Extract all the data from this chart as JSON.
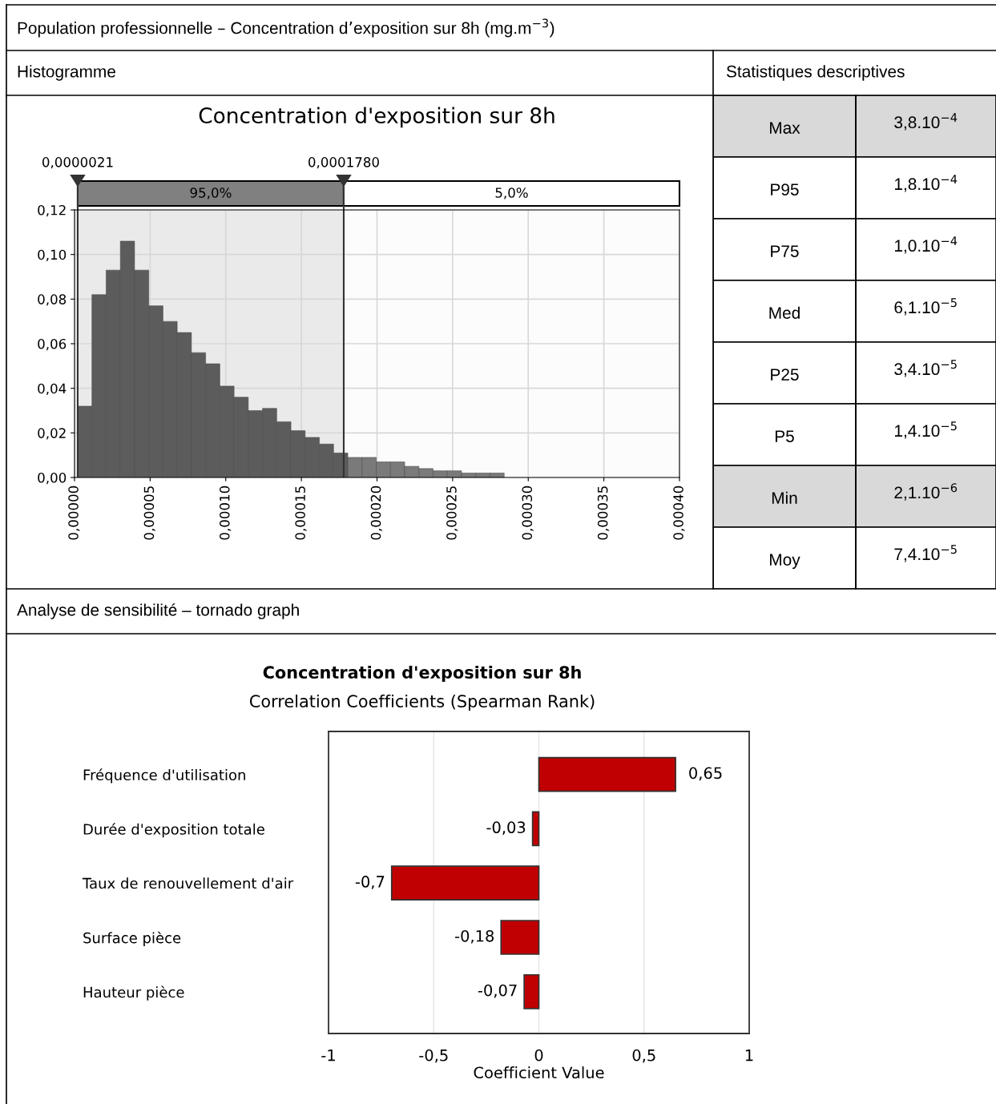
{
  "chart_data": [
    {
      "type": "histogram",
      "title": "Concentration d'exposition sur 8h",
      "annotations": [
        "Population professionnelle – Concentration d’exposition sur 8h (mg.m$^{−3}$)",
        "Histogramme"
      ],
      "bins": [
        2.1e-06,
        1.15e-05,
        2.09e-05,
        3.03e-05,
        3.97e-05,
        4.91e-05,
        5.85e-05,
        6.79e-05,
        7.73e-05,
        8.67e-05,
        9.61e-05,
        0.0001055,
        0.0001149,
        0.0001243,
        0.0001337,
        0.0001431,
        0.0001525,
        0.0001619,
        0.0001713,
        0.0001807,
        0.0001901,
        0.0001995,
        0.0002089,
        0.0002183,
        0.0002277,
        0.0002371,
        0.0002465,
        0.0002559,
        0.0002653,
        0.0002747,
        0.0002841
      ],
      "values": [
        0.032,
        0.082,
        0.093,
        0.106,
        0.093,
        0.077,
        0.07,
        0.065,
        0.056,
        0.051,
        0.041,
        0.036,
        0.03,
        0.031,
        0.025,
        0.021,
        0.018,
        0.015,
        0.011,
        0.009,
        0.009,
        0.007,
        0.007,
        0.005,
        0.004,
        0.003,
        0.003,
        0.002,
        0.002,
        0.002
      ],
      "colors": [
        "#5c5c5c",
        "#5c5c5c",
        "#5c5c5c",
        "#5c5c5c",
        "#5c5c5c",
        "#5c5c5c",
        "#5c5c5c",
        "#5c5c5c",
        "#5c5c5c",
        "#5c5c5c",
        "#5c5c5c",
        "#5c5c5c",
        "#5c5c5c",
        "#5c5c5c",
        "#5c5c5c",
        "#5c5c5c",
        "#5c5c5c",
        "#5c5c5c",
        "#5c5c5c",
        "#7a7a7a",
        "#7a7a7a",
        "#7a7a7a",
        "#7a7a7a",
        "#7a7a7a",
        "#7a7a7a",
        "#7a7a7a",
        "#7a7a7a",
        "#7a7a7a",
        "#7a7a7a",
        "#7a7a7a"
      ],
      "xlim": [
        0,
        0.0004
      ],
      "xticks": [
        {
          "value": 0,
          "label": "0,00000"
        },
        {
          "value": 5e-05,
          "label": "0,00005"
        },
        {
          "value": 0.0001,
          "label": "0,00010"
        },
        {
          "value": 0.00015,
          "label": "0,00015"
        },
        {
          "value": 0.0002,
          "label": "0,00020"
        },
        {
          "value": 0.00025,
          "label": "0,00025"
        },
        {
          "value": 0.0003,
          "label": "0,00030"
        },
        {
          "value": 0.00035,
          "label": "0,00035"
        },
        {
          "value": 0.0004,
          "label": "0,00040"
        }
      ],
      "ylim": [
        0,
        0.12
      ],
      "yticks": [
        {
          "value": 0,
          "label": "0,00"
        },
        {
          "value": 0.02,
          "label": "0,02"
        },
        {
          "value": 0.04,
          "label": "0,04"
        },
        {
          "value": 0.06,
          "label": "0,06"
        },
        {
          "value": 0.08,
          "label": "0,08"
        },
        {
          "value": 0.1,
          "label": "0,10"
        },
        {
          "value": 0.12,
          "label": "0,12"
        }
      ],
      "grid": true,
      "ref_lines": [
        {
          "axis": "x",
          "value": 2.1e-06,
          "label": "0,0000021",
          "color": "#333333"
        },
        {
          "axis": "x",
          "value": 0.000178,
          "label": "0,0001780",
          "color": "#333333"
        }
      ],
      "bands": [
        {
          "axis": "x",
          "from": 2.1e-06,
          "to": 0.000178,
          "label": "95,0%",
          "color": "#808080"
        },
        {
          "axis": "x",
          "from": 0.000178,
          "to": 0.0004,
          "label": "5,0%",
          "color": "#ffffff"
        }
      ]
    },
    {
      "type": "other",
      "title": "Statistiques descriptives",
      "categories": [
        "Max",
        "P95",
        "P75",
        "Med",
        "P25",
        "P5",
        "Min",
        "Moy"
      ],
      "value_labels": [
        "3,8.10$^{−4}$",
        "1,8.10$^{−4}$",
        "1,0.10$^{−4}$",
        "6,1.10$^{−5}$",
        "3,4.10$^{−5}$",
        "1,4.10$^{−5}$",
        "2,1.10$^{−6}$",
        "7,4.10$^{−5}$"
      ],
      "colors": [
        "#d9d9d9",
        "#ffffff",
        "#ffffff",
        "#ffffff",
        "#ffffff",
        "#ffffff",
        "#d9d9d9",
        "#ffffff"
      ]
    },
    {
      "type": "bar",
      "orientation": "horizontal",
      "title": "Concentration d'exposition sur 8h",
      "subtitle": "Correlation Coefficients (Spearman Rank)",
      "xlabel": "Coefficient Value",
      "annotations": [
        "Analyse de sensibilité – tornado graph"
      ],
      "categories": [
        "Fréquence d'utilisation",
        "Durée d'exposition totale",
        "Taux de renouvellement d'air",
        "Surface pièce",
        "Hauteur pièce"
      ],
      "values": [
        0.65,
        -0.03,
        -0.7,
        -0.18,
        -0.07
      ],
      "value_labels": [
        "0,65",
        "-0,03",
        "-0,7",
        "-0,18",
        "-0,07"
      ],
      "color": "#c00000",
      "xlim": [
        -1,
        1
      ],
      "xticks": [
        -1,
        {
          "value": -0.5,
          "label": "-0,5"
        },
        0,
        {
          "value": 0.5,
          "label": "0,5"
        },
        1
      ],
      "grid": "x"
    }
  ]
}
